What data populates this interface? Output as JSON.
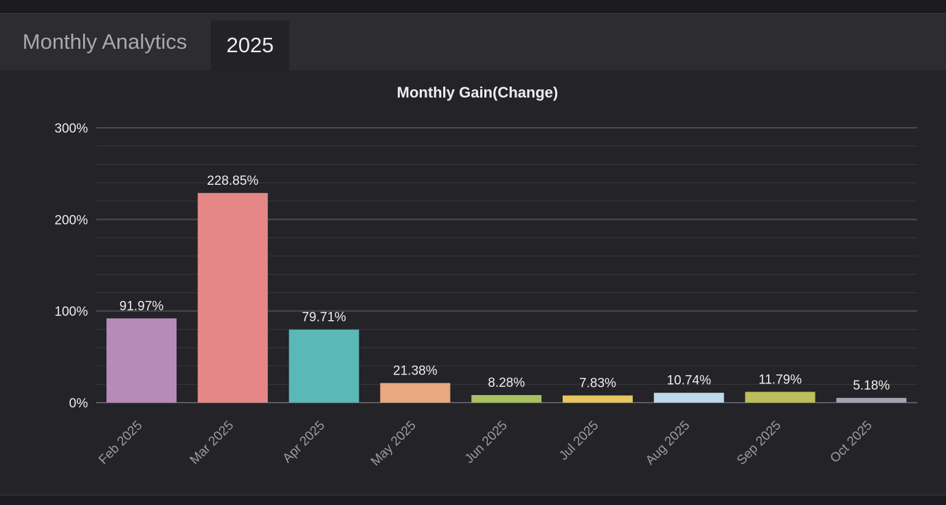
{
  "tabs": [
    {
      "label": "Monthly Analytics"
    },
    {
      "label": "2025"
    }
  ],
  "chart_data": {
    "type": "bar",
    "title": "Monthly Gain(Change)",
    "categories": [
      "Feb 2025",
      "Mar 2025",
      "Apr 2025",
      "May 2025",
      "Jun 2025",
      "Jul 2025",
      "Aug 2025",
      "Sep 2025",
      "Oct 2025"
    ],
    "values": [
      91.97,
      228.85,
      79.71,
      21.38,
      8.28,
      7.83,
      10.74,
      11.79,
      5.18
    ],
    "value_labels": [
      "91.97%",
      "228.85%",
      "79.71%",
      "21.38%",
      "8.28%",
      "7.83%",
      "10.74%",
      "11.79%",
      "5.18%"
    ],
    "colors": [
      "#b68bb8",
      "#e58787",
      "#5ab8b7",
      "#e8a880",
      "#a9c05e",
      "#e6c65e",
      "#bcd8ea",
      "#bdbd5c",
      "#a8a1b2"
    ],
    "ylim": [
      0,
      300
    ],
    "yticks": [
      {
        "value": 0,
        "label": "0%"
      },
      {
        "value": 100,
        "label": "100%"
      },
      {
        "value": 200,
        "label": "200%"
      },
      {
        "value": 300,
        "label": "300%"
      }
    ],
    "grid": true,
    "colors_theme": {
      "text": "#eeeeee",
      "tick": "#9a9aa0",
      "grid_major": "#4a4a50",
      "grid_minor": "#38383e",
      "axis": "#5a5a60"
    }
  }
}
